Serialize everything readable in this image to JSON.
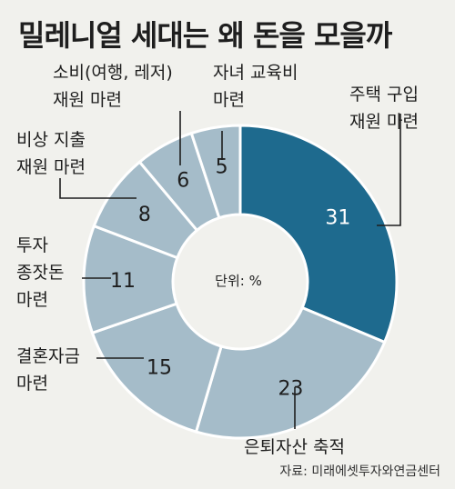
{
  "title": "밀레니얼 세대는 왜 돈을 모을까",
  "source": "자료: 미래에셋투자와연금센터",
  "chart_data": {
    "type": "pie",
    "donut": true,
    "center_label": "단위: %",
    "slices": [
      {
        "label_lines": [
          "주택 구입",
          "재원 마련"
        ],
        "value": 31,
        "color": "#1e6a8e",
        "label_color": "#ffffff"
      },
      {
        "label_lines": [
          "은퇴자산 축적"
        ],
        "value": 23,
        "color": "#a5bcc9",
        "label_color": "#1e1e1e"
      },
      {
        "label_lines": [
          "결혼자금",
          "마련"
        ],
        "value": 15,
        "color": "#a5bcc9",
        "label_color": "#1e1e1e"
      },
      {
        "label_lines": [
          "투자",
          "종잣돈",
          "마련"
        ],
        "value": 11,
        "color": "#a5bcc9",
        "label_color": "#1e1e1e"
      },
      {
        "label_lines": [
          "비상 지출",
          "재원 마련"
        ],
        "value": 8,
        "color": "#a5bcc9",
        "label_color": "#1e1e1e"
      },
      {
        "label_lines": [
          "소비(여행, 레저)",
          "재원 마련"
        ],
        "value": 6,
        "color": "#a5bcc9",
        "label_color": "#1e1e1e"
      },
      {
        "label_lines": [
          "자녀 교육비",
          "마련"
        ],
        "value": 5,
        "color": "#a5bcc9",
        "label_color": "#1e1e1e"
      }
    ],
    "legend": "none"
  }
}
